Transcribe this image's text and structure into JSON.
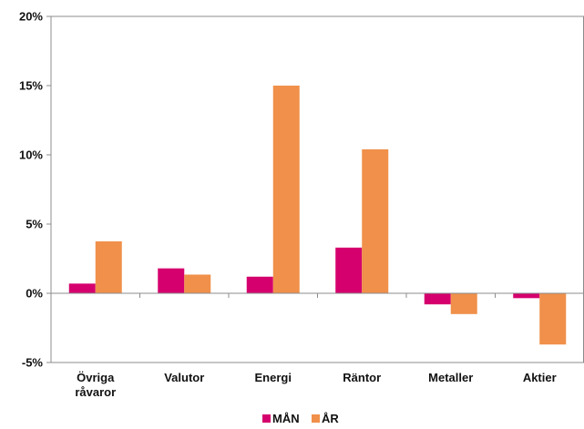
{
  "chart_data": {
    "type": "bar",
    "categories": [
      [
        "Övriga",
        "råvaror"
      ],
      [
        "Valutor"
      ],
      [
        "Energi"
      ],
      [
        "Räntor"
      ],
      [
        "Metaller"
      ],
      [
        "Aktier"
      ]
    ],
    "series": [
      {
        "name": "MÅN",
        "color": "#d5006d",
        "values": [
          0.7,
          1.8,
          1.2,
          3.3,
          -0.8,
          -0.35
        ]
      },
      {
        "name": "ÅR",
        "color": "#f0904a",
        "values": [
          3.75,
          1.35,
          15.0,
          10.4,
          -1.5,
          -3.7
        ]
      }
    ],
    "ylim": [
      -5,
      20
    ],
    "yticks": [
      -5,
      0,
      5,
      10,
      15,
      20
    ],
    "ytick_labels": [
      "-5%",
      "0%",
      "5%",
      "10%",
      "15%",
      "20%"
    ],
    "grid": false,
    "legend_position": "bottom-center",
    "title": "",
    "xlabel": "",
    "ylabel": ""
  }
}
